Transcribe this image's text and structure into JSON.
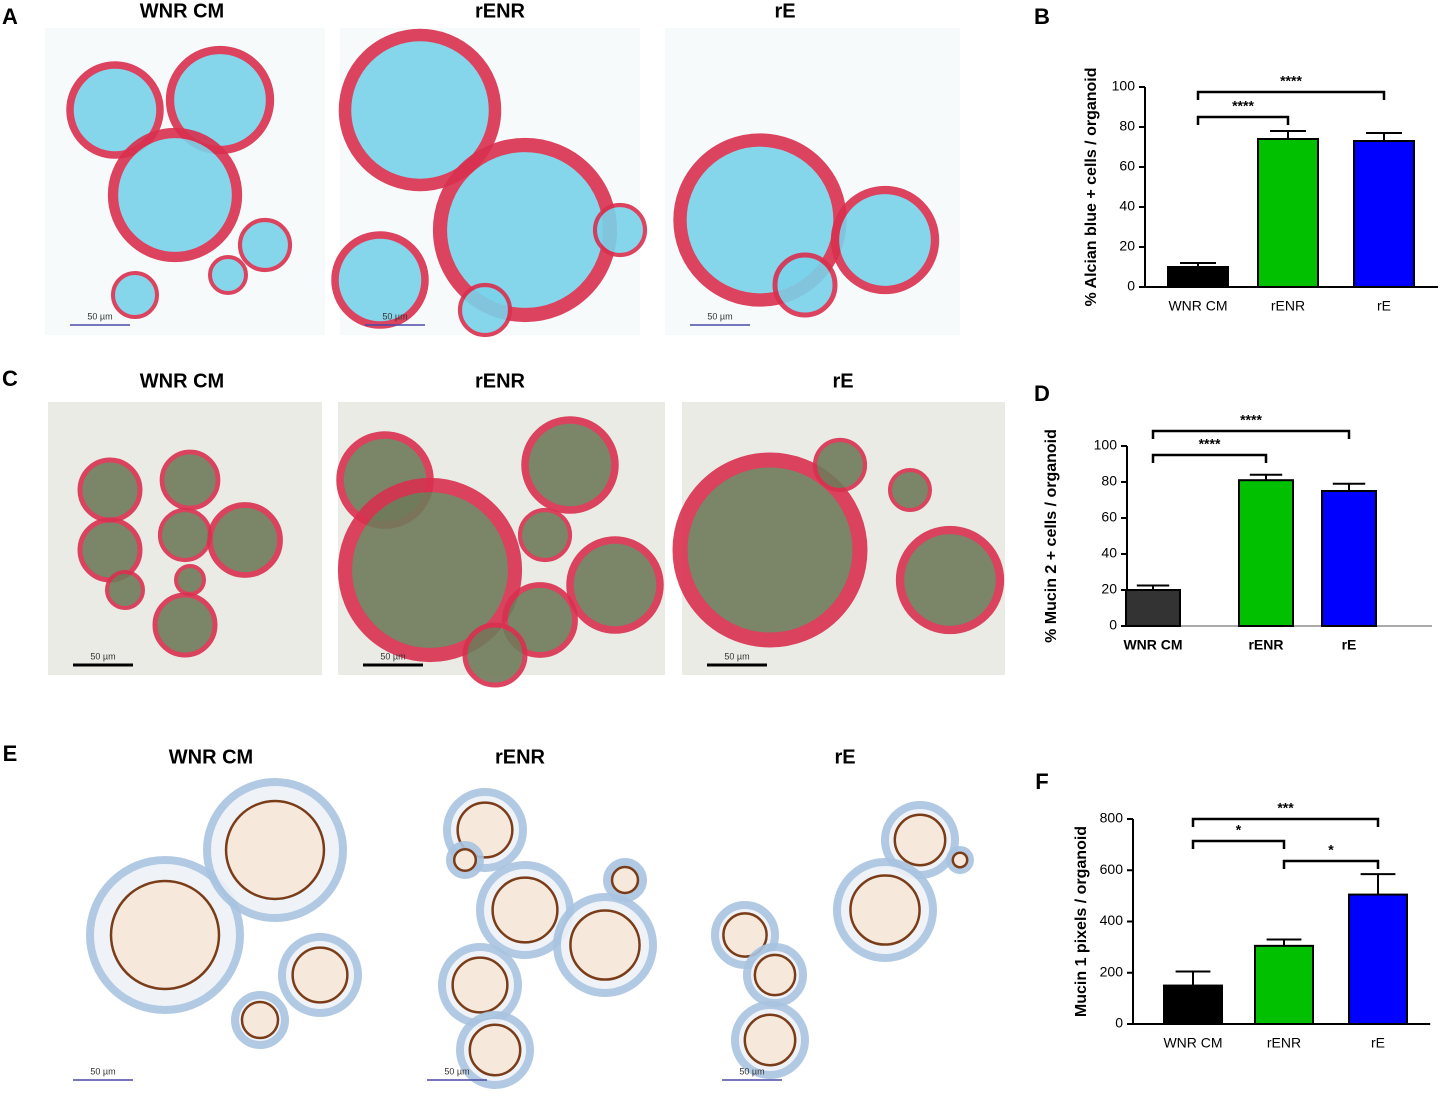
{
  "panel_labels": [
    "A",
    "B",
    "C",
    "D",
    "E",
    "F"
  ],
  "image_rows": [
    {
      "titles": [
        "WNR CM",
        "rENR",
        "rE"
      ],
      "scale_bars": [
        "50 µm",
        "50 µm",
        "50 µm"
      ]
    },
    {
      "titles": [
        "WNR CM",
        "rENR",
        "rE"
      ],
      "scale_bars": [
        "50 µm",
        "50 µm",
        "50 µm"
      ]
    },
    {
      "titles": [
        "WNR CM",
        "rENR",
        "rE"
      ],
      "scale_bars": [
        "50 µm",
        "50 µm",
        "50 µm"
      ]
    }
  ],
  "chart_data": [
    {
      "type": "bar",
      "ylabel": "% Alcian blue + cells / organoid",
      "categories": [
        "WNR CM",
        "rENR",
        "rE"
      ],
      "values": [
        10,
        74,
        73
      ],
      "errors": [
        2,
        4,
        4
      ],
      "colors": [
        "#000000",
        "#00c000",
        "#0000ff"
      ],
      "ylim": [
        0,
        100
      ],
      "yticks": [
        0,
        20,
        40,
        60,
        80,
        100
      ],
      "annotations": [
        "****",
        "****"
      ],
      "category_font_weight": "normal"
    },
    {
      "type": "bar",
      "ylabel": "% Mucin 2 + cells / organoid",
      "categories": [
        "WNR CM",
        "rENR",
        "rE"
      ],
      "values": [
        20,
        81,
        75
      ],
      "errors": [
        2.5,
        3,
        4
      ],
      "colors": [
        "#333333",
        "#00c000",
        "#0000ff"
      ],
      "ylim": [
        0,
        100
      ],
      "yticks": [
        0,
        20,
        40,
        60,
        80,
        100
      ],
      "annotations": [
        "****",
        "****"
      ],
      "category_font_weight": "bold"
    },
    {
      "type": "bar",
      "ylabel": "Mucin 1 pixels / organoid",
      "categories": [
        "WNR CM",
        "rENR",
        "rE"
      ],
      "values": [
        150,
        305,
        505
      ],
      "errors": [
        55,
        25,
        80
      ],
      "colors": [
        "#000000",
        "#00c000",
        "#0000ff"
      ],
      "ylim": [
        0,
        800
      ],
      "yticks": [
        0,
        200,
        400,
        600,
        800
      ],
      "annotations": [
        "***",
        "*",
        "*"
      ],
      "category_font_weight": "normal"
    }
  ]
}
